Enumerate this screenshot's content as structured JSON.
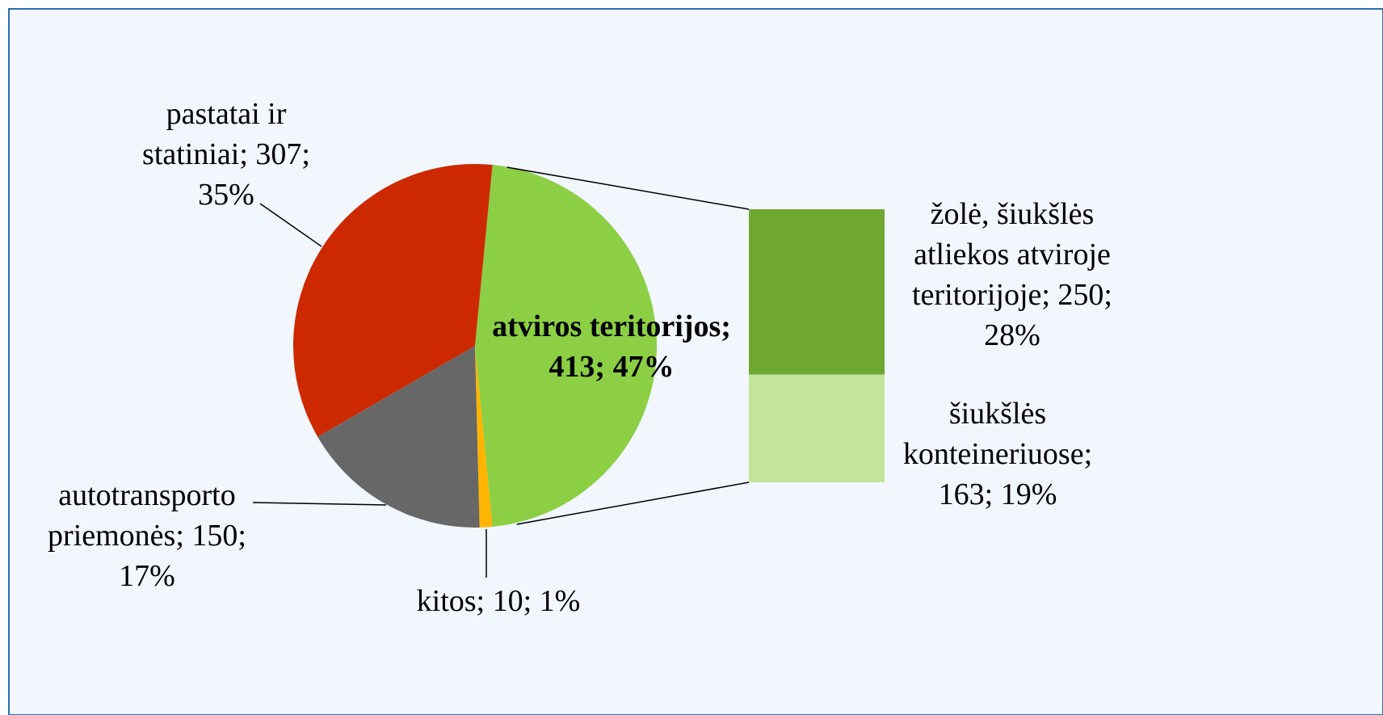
{
  "chart_data": {
    "type": "pie-of-bar",
    "pie": {
      "values": [
        413,
        10,
        150,
        307
      ],
      "value_labels": [
        "atviros teritorijos; 413; 47%",
        "kitos; 10; 1%",
        "autotransporto priemonės; 150; 17%",
        "pastatai ir statiniai; 307; 35%"
      ],
      "colors": [
        "#8ccf45",
        "#ffb400",
        "#676767",
        "#cc2900"
      ]
    },
    "bar": {
      "values": [
        250,
        163
      ],
      "value_labels": [
        "žolė, šiukšlės atliekos atviroje teritorijoje; 250; 28%",
        "šiukšlės konteineriuose; 163; 19%"
      ],
      "colors": [
        "#6fa830",
        "#c3e59a"
      ]
    }
  }
}
